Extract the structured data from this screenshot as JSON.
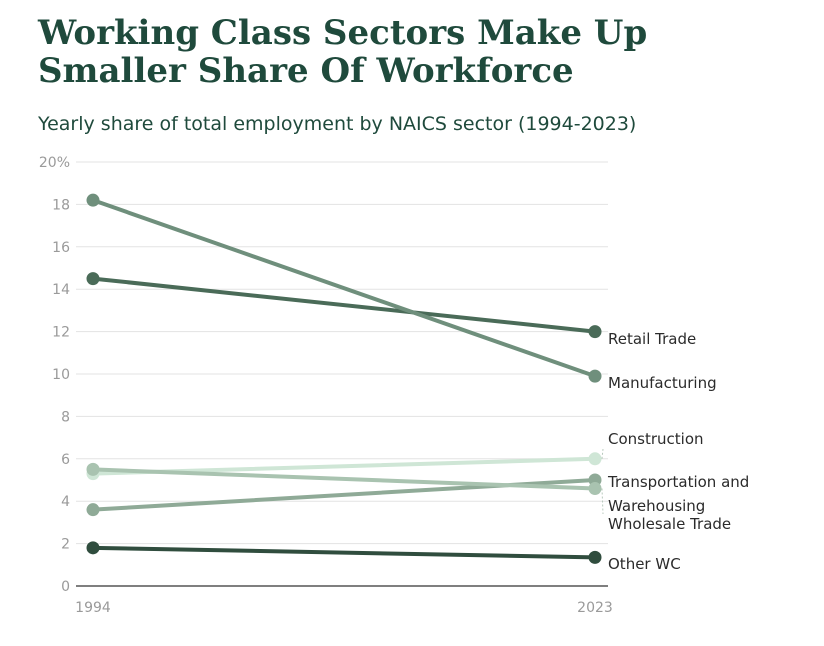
{
  "title": "Working Class Sectors Make Up Smaller Share Of Workforce",
  "subtitle": "Yearly share of total employment by NAICS sector (1994-2023)",
  "chart_data": {
    "type": "line",
    "title": "Working Class Sectors Make Up Smaller Share Of Workforce",
    "subtitle": "Yearly share of total employment by NAICS sector (1994-2023)",
    "xlabel": "",
    "ylabel": "",
    "x": [
      "1994",
      "2023"
    ],
    "ylim": [
      0,
      20
    ],
    "yticks": [
      0,
      2,
      4,
      6,
      8,
      10,
      12,
      14,
      16,
      18,
      20
    ],
    "ytick_labels": [
      "0",
      "2",
      "4",
      "6",
      "8",
      "10",
      "12",
      "14",
      "16",
      "18",
      "20%"
    ],
    "grid": true,
    "legend": "direct labels at right end of lines",
    "series": [
      {
        "name": "Retail Trade",
        "values": [
          14.5,
          12.0
        ],
        "color": "#4a6b58"
      },
      {
        "name": "Manufacturing",
        "values": [
          18.2,
          9.9
        ],
        "color": "#6f8f7c"
      },
      {
        "name": "Construction",
        "values": [
          5.3,
          6.0
        ],
        "color": "#cfe6d6"
      },
      {
        "name": "Transportation and Warehousing",
        "values": [
          3.6,
          5.0
        ],
        "color": "#8faa97"
      },
      {
        "name": "Wholesale Trade",
        "values": [
          5.5,
          4.6
        ],
        "color": "#a9c3b0"
      },
      {
        "name": "Other WC",
        "values": [
          1.8,
          1.35
        ],
        "color": "#304d3e"
      }
    ]
  }
}
